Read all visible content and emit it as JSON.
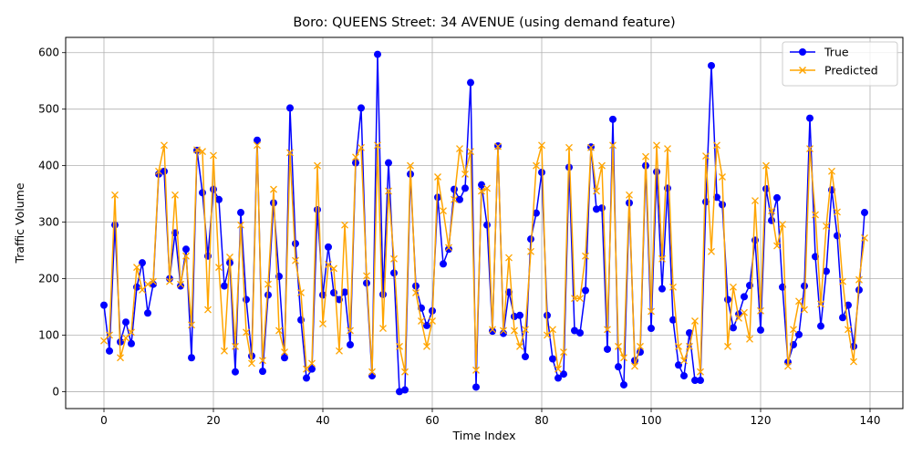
{
  "chart_data": {
    "type": "line",
    "title": "Boro: QUEENS Street: 34 AVENUE (using demand feature)",
    "xlabel": "Time Index",
    "ylabel": "Traffic Volume",
    "xlim": [
      -7,
      146
    ],
    "ylim": [
      -30,
      627
    ],
    "xticks": [
      0,
      20,
      40,
      60,
      80,
      100,
      120,
      140
    ],
    "yticks": [
      0,
      100,
      200,
      300,
      400,
      500,
      600
    ],
    "grid": true,
    "legend_position": "top-right",
    "series": [
      {
        "name": "True",
        "color": "#0000ff",
        "marker": "circle",
        "values": [
          153,
          72,
          295,
          88,
          123,
          85,
          185,
          228,
          139,
          190,
          385,
          390,
          200,
          281,
          187,
          252,
          60,
          427,
          352,
          240,
          358,
          340,
          187,
          228,
          35,
          317,
          163,
          63,
          445,
          36,
          171,
          334,
          204,
          60,
          502,
          262,
          127,
          24,
          40,
          322,
          171,
          256,
          175,
          163,
          176,
          83,
          405,
          502,
          192,
          28,
          597,
          172,
          405,
          210,
          0,
          3,
          385,
          187,
          148,
          117,
          143,
          344,
          226,
          252,
          358,
          340,
          360,
          547,
          8,
          366,
          295,
          107,
          435,
          103,
          176,
          133,
          135,
          62,
          270,
          316,
          388,
          135,
          58,
          24,
          31,
          397,
          108,
          104,
          179,
          433,
          323,
          325,
          75,
          482,
          44,
          12,
          334,
          55,
          70,
          400,
          112,
          389,
          182,
          360,
          127,
          47,
          28,
          104,
          20,
          20,
          336,
          577,
          344,
          331,
          163,
          113,
          137,
          168,
          188,
          268,
          109,
          359,
          303,
          343,
          185,
          52,
          83,
          101,
          187,
          484,
          239,
          116,
          213,
          357,
          276,
          131,
          153,
          80,
          180,
          317
        ]
      },
      {
        "name": "Predicted",
        "color": "#ffa500",
        "marker": "x",
        "values": [
          90,
          100,
          348,
          60,
          95,
          105,
          220,
          180,
          190,
          195,
          390,
          436,
          195,
          348,
          190,
          240,
          118,
          428,
          425,
          145,
          418,
          220,
          72,
          238,
          80,
          295,
          105,
          50,
          436,
          55,
          190,
          358,
          108,
          70,
          423,
          232,
          175,
          40,
          50,
          400,
          120,
          225,
          218,
          72,
          295,
          108,
          415,
          432,
          205,
          35,
          436,
          112,
          355,
          235,
          80,
          35,
          400,
          175,
          125,
          80,
          125,
          380,
          320,
          255,
          340,
          430,
          385,
          425,
          38,
          355,
          360,
          110,
          434,
          108,
          237,
          108,
          80,
          110,
          248,
          400,
          436,
          100,
          110,
          40,
          70,
          432,
          165,
          165,
          240,
          432,
          355,
          400,
          110,
          436,
          80,
          60,
          348,
          45,
          80,
          416,
          142,
          436,
          235,
          430,
          185,
          80,
          55,
          80,
          125,
          35,
          417,
          248,
          436,
          380,
          80,
          185,
          130,
          140,
          93,
          338,
          143,
          400,
          320,
          258,
          296,
          45,
          110,
          160,
          145,
          430,
          313,
          155,
          293,
          390,
          318,
          195,
          110,
          53,
          198,
          272
        ]
      }
    ]
  }
}
